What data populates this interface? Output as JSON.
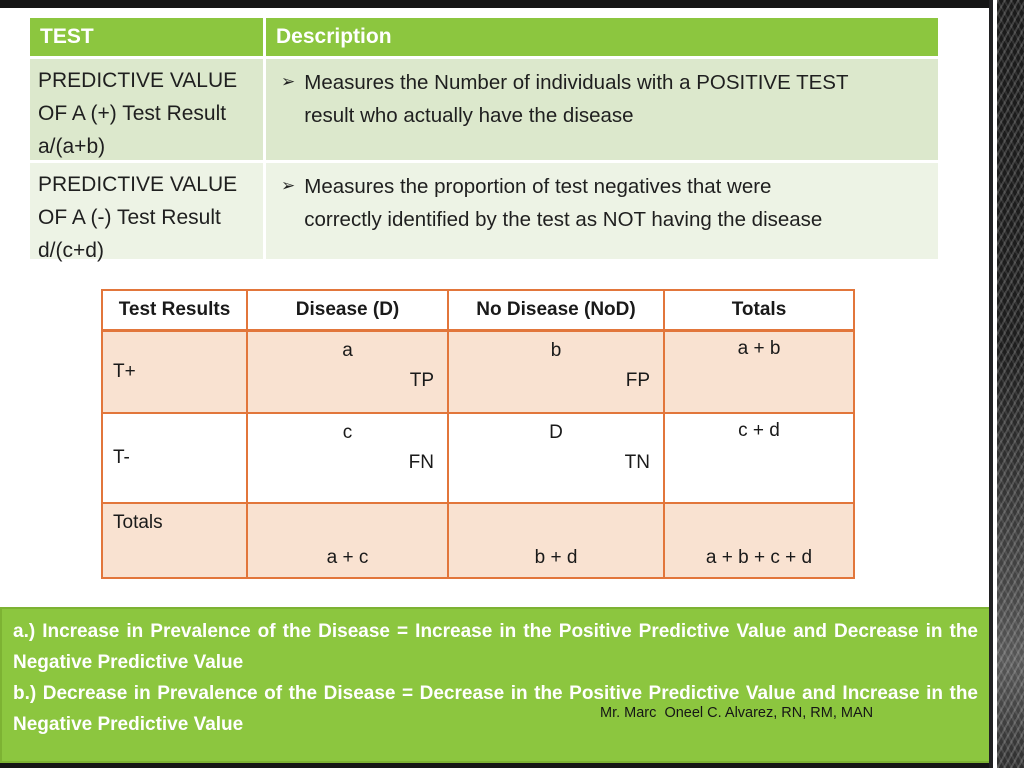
{
  "colors": {
    "accent_green": "#8CC63F",
    "row_green_dark": "#DCE8CC",
    "row_green_light": "#EDF3E5",
    "table_border_orange": "#E2763B",
    "cell_peach": "#F9E2D1",
    "header_text": "#ffffff",
    "body_text": "#1f1f1f",
    "frame_black": "#151515"
  },
  "definition_table": {
    "headers": {
      "test": "TEST",
      "description": "Description"
    },
    "bullet_icon": "➢",
    "rows": [
      {
        "test": "PREDICTIVE VALUE\nOF A (+) Test Result\na/(a+b)",
        "description": "Measures the Number of individuals with a POSITIVE TEST\nresult who actually have the disease"
      },
      {
        "test": "PREDICTIVE VALUE\nOF A (-) Test Result\nd/(c+d)",
        "description": "Measures the proportion of test negatives that were\ncorrectly identified by the test as NOT having the disease"
      }
    ]
  },
  "contingency_table": {
    "headers": [
      "Test Results",
      "Disease (D)",
      "No Disease (NoD)",
      "Totals"
    ],
    "rows": {
      "t_plus": {
        "label": "T+",
        "disease_value": "a",
        "disease_tag": "TP",
        "no_disease_value": "b",
        "no_disease_tag": "FP",
        "total": "a + b"
      },
      "t_minus": {
        "label": "T-",
        "disease_value": "c",
        "disease_tag": "FN",
        "no_disease_value": "D",
        "no_disease_tag": "TN",
        "total": "c + d"
      },
      "totals": {
        "label": "Totals",
        "disease_total": "a + c",
        "no_disease_total": "b + d",
        "grand_total": "a + b + c + d"
      }
    }
  },
  "note_box": {
    "point_a": "a.) Increase in Prevalence of the Disease = Increase in the Positive Predictive Value and Decrease in the Negative Predictive Value",
    "point_b": "b.) Decrease in Prevalence of the Disease = Decrease in the Positive Predictive Value and Increase in the Negative Predictive Value",
    "attribution": "Mr. Marc  Oneel C. Alvarez, RN, RM, MAN"
  }
}
